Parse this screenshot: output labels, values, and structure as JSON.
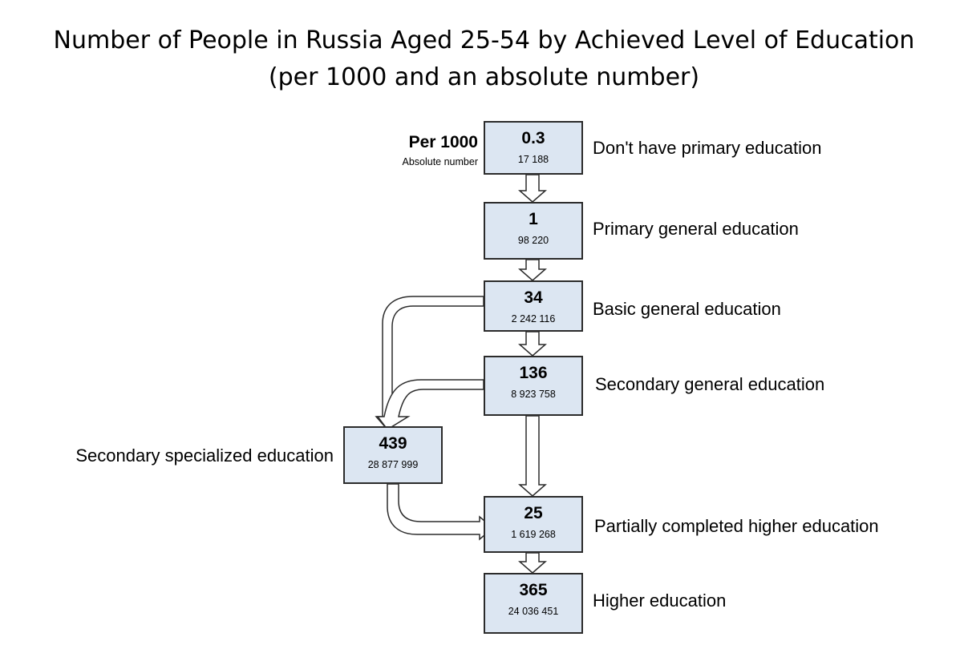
{
  "title": {
    "line1": "Number of People in Russia Aged 25-54 by Achieved Level of Education",
    "line2": "(per 1000 and an absolute number)"
  },
  "legend": {
    "per_1000": "Per 1000",
    "absolute": "Absolute number"
  },
  "levels": {
    "no_primary": {
      "per_1000": "0.3",
      "absolute": "17 188",
      "label": "Don't have primary education"
    },
    "primary": {
      "per_1000": "1",
      "absolute": "98 220",
      "label": "Primary general education"
    },
    "basic": {
      "per_1000": "34",
      "absolute": "2 242 116",
      "label": "Basic general education"
    },
    "secondary_general": {
      "per_1000": "136",
      "absolute": "8 923 758",
      "label": "Secondary general education"
    },
    "secondary_specialized": {
      "per_1000": "439",
      "absolute": "28 877 999",
      "label": "Secondary specialized education"
    },
    "partial_higher": {
      "per_1000": "25",
      "absolute": "1 619 268",
      "label": "Partially completed higher education"
    },
    "higher": {
      "per_1000": "365",
      "absolute": "24 036 451",
      "label": "Higher education"
    }
  },
  "colors": {
    "box_fill": "#dce6f2",
    "box_border": "#2b2b2b"
  }
}
